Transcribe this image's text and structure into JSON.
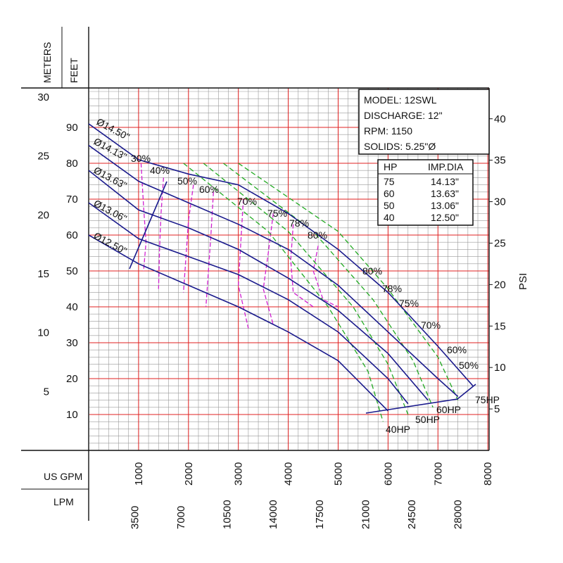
{
  "chart_data": {
    "type": "line",
    "title": "",
    "axes": {
      "left_meters": {
        "label": "METERS",
        "ticks": [
          5,
          10,
          15,
          20,
          25,
          30
        ]
      },
      "left_feet": {
        "label": "FEET",
        "ticks": [
          10,
          20,
          30,
          40,
          50,
          60,
          70,
          80,
          90
        ]
      },
      "right_psi": {
        "label": "PSI",
        "ticks": [
          5,
          10,
          15,
          20,
          25,
          30,
          35,
          40
        ]
      },
      "bottom_usgpm": {
        "label": "US GPM",
        "ticks": [
          1000,
          2000,
          3000,
          4000,
          5000,
          6000,
          7000,
          8000
        ],
        "range": [
          0,
          8000
        ]
      },
      "bottom_lpm": {
        "label": "LPM",
        "ticks": [
          3500,
          7000,
          10500,
          14000,
          17500,
          21000,
          24500,
          28000
        ]
      },
      "head_ft_range": [
        0,
        100
      ],
      "grid": true
    },
    "spec_box": {
      "rows": [
        "MODEL: 12SWL",
        "DISCHARGE: 12\"",
        "RPM: 1150",
        "SOLIDS: 5.25\"Ø"
      ]
    },
    "hp_table": {
      "headers": [
        "HP",
        "IMP.DIA"
      ],
      "rows": [
        [
          "75",
          "14.13\""
        ],
        [
          "60",
          "13.63\""
        ],
        [
          "50",
          "13.06\""
        ],
        [
          "40",
          "12.50\""
        ]
      ]
    },
    "series": [
      {
        "name": "Ø14.50\"",
        "x": [
          0,
          1000,
          2000,
          3000,
          4000,
          5000,
          6000,
          7000,
          7700
        ],
        "y": [
          91,
          81,
          77,
          74,
          66,
          56,
          44,
          29,
          18
        ]
      },
      {
        "name": "Ø14.13\"",
        "x": [
          0,
          1000,
          2000,
          3000,
          4000,
          5000,
          6000,
          7000,
          7400
        ],
        "y": [
          85,
          75,
          69,
          63,
          56,
          46,
          33,
          20,
          15
        ]
      },
      {
        "name": "Ø13.63\"",
        "x": [
          0,
          1000,
          2000,
          3000,
          4000,
          5000,
          6000,
          6800
        ],
        "y": [
          78,
          67,
          62,
          56,
          48,
          39,
          27,
          14
        ]
      },
      {
        "name": "Ø13.06\"",
        "x": [
          0,
          1000,
          2000,
          3000,
          4000,
          5000,
          6000,
          6400
        ],
        "y": [
          69,
          59,
          54,
          49,
          42,
          33,
          20,
          13
        ]
      },
      {
        "name": "Ø12.50\"",
        "x": [
          0,
          1000,
          2000,
          3000,
          4000,
          5000,
          5500,
          6000
        ],
        "y": [
          60,
          52,
          46,
          40,
          33,
          25,
          18,
          11
        ]
      }
    ],
    "hp_lines": [
      {
        "name": "75HP",
        "x": [
          3000,
          5000,
          6000,
          7000,
          7400
        ],
        "y": [
          80,
          61,
          45,
          26,
          14
        ]
      },
      {
        "name": "60HP",
        "x": [
          2700,
          4500,
          5700,
          6500,
          6900
        ],
        "y": [
          80,
          61,
          42,
          25,
          12
        ]
      },
      {
        "name": "50HP",
        "x": [
          2300,
          4000,
          5300,
          6000,
          6400
        ],
        "y": [
          80,
          61,
          40,
          24,
          10
        ]
      },
      {
        "name": "40HP",
        "x": [
          1900,
          3600,
          4800,
          5600,
          5900
        ],
        "y": [
          80,
          61,
          40,
          22,
          8
        ]
      }
    ],
    "efficiency_labels": [
      "30%",
      "40%",
      "50%",
      "60%",
      "70%",
      "75%",
      "78%",
      "80%",
      "80%",
      "78%",
      "75%",
      "70%",
      "60%",
      "50%"
    ],
    "efficiency_curves": [
      {
        "x": [
          1050,
          1100,
          1150,
          1100
        ],
        "y": [
          80,
          68,
          58,
          50
        ]
      },
      {
        "x": [
          1500,
          1450,
          1420,
          1400
        ],
        "y": [
          76,
          66,
          56,
          45
        ]
      },
      {
        "x": [
          2100,
          2000,
          1950,
          1900
        ],
        "y": [
          74,
          64,
          54,
          44
        ]
      },
      {
        "x": [
          2500,
          2450,
          2400,
          2350
        ],
        "y": [
          72,
          60,
          50,
          40
        ]
      },
      {
        "x": [
          3100,
          3050,
          3000,
          3200
        ],
        "y": [
          70,
          58,
          46,
          34
        ]
      },
      {
        "x": [
          3700,
          3600,
          3500,
          3700
        ],
        "y": [
          66,
          55,
          45,
          35
        ]
      },
      {
        "x": [
          4100,
          4050,
          4100,
          4500
        ],
        "y": [
          63,
          53,
          44,
          40
        ]
      },
      {
        "x": [
          4600,
          4500,
          4700,
          5000
        ],
        "y": [
          57,
          50,
          42,
          40
        ]
      }
    ]
  }
}
